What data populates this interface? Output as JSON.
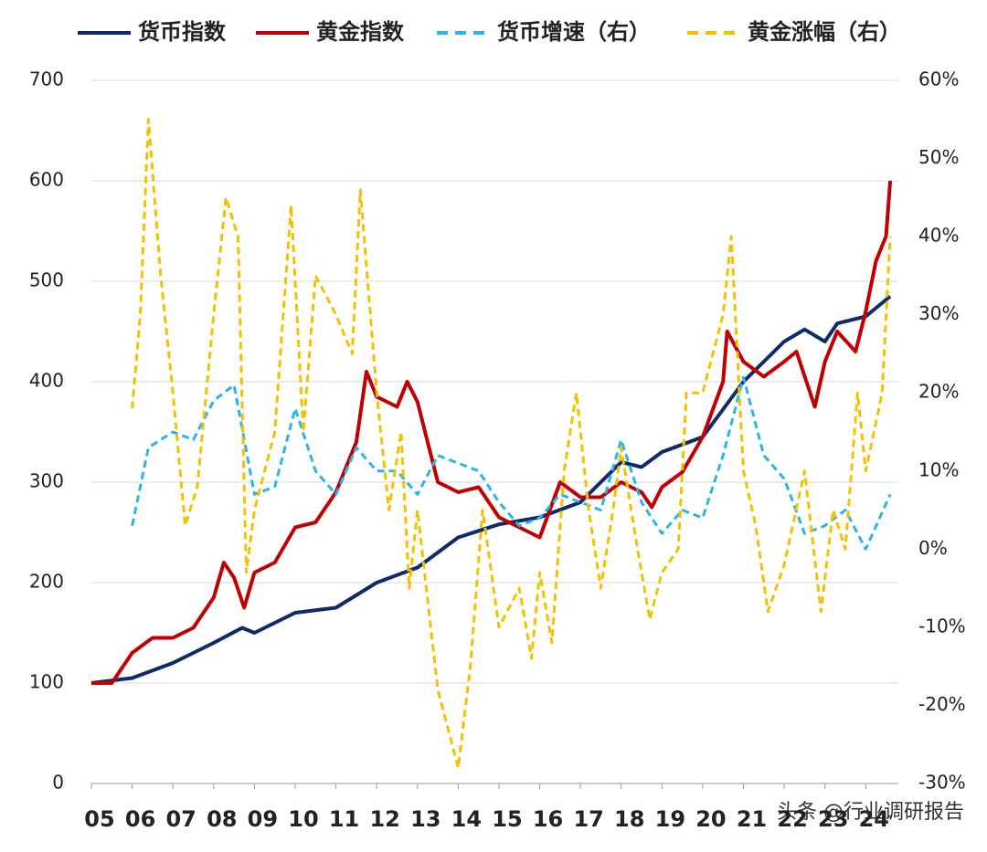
{
  "chart_data": {
    "type": "line",
    "xlim": [
      2005,
      2024.8
    ],
    "xticks": [
      {
        "value": 2005,
        "label": "05"
      },
      {
        "value": 2006,
        "label": "06"
      },
      {
        "value": 2007,
        "label": "07"
      },
      {
        "value": 2008,
        "label": "08"
      },
      {
        "value": 2009,
        "label": "09"
      },
      {
        "value": 2010,
        "label": "10"
      },
      {
        "value": 2011,
        "label": "11"
      },
      {
        "value": 2012,
        "label": "12"
      },
      {
        "value": 2013,
        "label": "13"
      },
      {
        "value": 2014,
        "label": "14"
      },
      {
        "value": 2015,
        "label": "15"
      },
      {
        "value": 2016,
        "label": "16"
      },
      {
        "value": 2017,
        "label": "17"
      },
      {
        "value": 2018,
        "label": "18"
      },
      {
        "value": 2019,
        "label": "19"
      },
      {
        "value": 2020,
        "label": "20"
      },
      {
        "value": 2021,
        "label": "21"
      },
      {
        "value": 2022,
        "label": "22"
      },
      {
        "value": 2023,
        "label": "23"
      },
      {
        "value": 2024,
        "label": "24"
      }
    ],
    "ylim": [
      0,
      700
    ],
    "yticks": [
      0,
      100,
      200,
      300,
      400,
      500,
      600,
      700
    ],
    "y2lim": [
      -30,
      60
    ],
    "y2ticks": [
      {
        "value": -30,
        "label": "-30%"
      },
      {
        "value": -20,
        "label": "-20%"
      },
      {
        "value": -10,
        "label": "-10%"
      },
      {
        "value": 0,
        "label": "0%"
      },
      {
        "value": 10,
        "label": "10%"
      },
      {
        "value": 20,
        "label": "20%"
      },
      {
        "value": 30,
        "label": "30%"
      },
      {
        "value": 40,
        "label": "40%"
      },
      {
        "value": 50,
        "label": "50%"
      },
      {
        "value": 60,
        "label": "60%"
      }
    ],
    "grid": true,
    "legend": "top",
    "watermark": "头条 @行业调研报告",
    "series": [
      {
        "name": "货币指数",
        "color": "#0d2a6b",
        "dash": false,
        "x": [
          2005,
          2006,
          2007,
          2008,
          2008.7,
          2009,
          2010,
          2011,
          2012,
          2013,
          2014,
          2015,
          2016,
          2017,
          2018,
          2018.5,
          2019,
          2020,
          2021,
          2022,
          2022.5,
          2023,
          2023.3,
          2024,
          2024.6
        ],
        "values": [
          100,
          105,
          120,
          140,
          155,
          150,
          170,
          175,
          200,
          215,
          245,
          258,
          265,
          280,
          320,
          315,
          330,
          345,
          400,
          440,
          452,
          440,
          458,
          465,
          485
        ]
      },
      {
        "name": "黄金指数",
        "color": "#c00000",
        "dash": false,
        "x": [
          2005,
          2005.5,
          2006,
          2006.5,
          2007,
          2007.5,
          2008,
          2008.25,
          2008.5,
          2008.75,
          2009,
          2009.5,
          2010,
          2010.5,
          2011,
          2011.5,
          2011.75,
          2012,
          2012.5,
          2012.75,
          2013,
          2013.25,
          2013.5,
          2014,
          2014.5,
          2015,
          2015.5,
          2016,
          2016.5,
          2017,
          2017.5,
          2018,
          2018.5,
          2018.75,
          2019,
          2019.5,
          2020,
          2020.5,
          2020.6,
          2021,
          2021.5,
          2022,
          2022.3,
          2022.75,
          2023,
          2023.3,
          2023.75,
          2024,
          2024.25,
          2024.5,
          2024.6
        ],
        "values": [
          100,
          100,
          130,
          145,
          145,
          155,
          185,
          220,
          205,
          175,
          210,
          220,
          255,
          260,
          290,
          340,
          410,
          385,
          375,
          400,
          380,
          340,
          300,
          290,
          295,
          265,
          255,
          245,
          300,
          285,
          285,
          300,
          290,
          275,
          295,
          310,
          345,
          400,
          450,
          420,
          405,
          420,
          430,
          375,
          420,
          450,
          430,
          470,
          520,
          545,
          600
        ]
      },
      {
        "name": "货币增速（右）",
        "color": "#2bb5e6",
        "dash": true,
        "axis": "y2",
        "x": [
          2006,
          2006.4,
          2007,
          2007.5,
          2008,
          2008.5,
          2009,
          2009.5,
          2010,
          2010.5,
          2011,
          2011.5,
          2012,
          2012.5,
          2013,
          2013.5,
          2014,
          2014.5,
          2015,
          2015.5,
          2016,
          2016.5,
          2017,
          2017.5,
          2018,
          2018.5,
          2019,
          2019.5,
          2020,
          2020.5,
          2021,
          2021.5,
          2022,
          2022.5,
          2023,
          2023.5,
          2024,
          2024.6
        ],
        "values": [
          3,
          13,
          15,
          14,
          19,
          21,
          7,
          8,
          18,
          10,
          7,
          13,
          10,
          10,
          7,
          12,
          11,
          10,
          6,
          3,
          4,
          7,
          6,
          5,
          14,
          6,
          2,
          5,
          4,
          12,
          22,
          12,
          9,
          2,
          3,
          5,
          0,
          7
        ]
      },
      {
        "name": "黄金涨幅（右）",
        "color": "#f5c000",
        "dash": true,
        "axis": "y2",
        "x": [
          2006,
          2006.2,
          2006.4,
          2006.7,
          2007,
          2007.3,
          2007.6,
          2008,
          2008.3,
          2008.6,
          2008.8,
          2009,
          2009.5,
          2009.9,
          2010.2,
          2010.5,
          2011,
          2011.4,
          2011.6,
          2012,
          2012.3,
          2012.6,
          2012.8,
          2013,
          2013.5,
          2014,
          2014.3,
          2014.6,
          2015,
          2015.5,
          2015.8,
          2016,
          2016.3,
          2016.6,
          2016.9,
          2017.2,
          2017.5,
          2017.8,
          2018,
          2018.4,
          2018.7,
          2019,
          2019.4,
          2019.6,
          2020,
          2020.5,
          2020.7,
          2021,
          2021.3,
          2021.6,
          2022,
          2022.5,
          2022.9,
          2023.2,
          2023.5,
          2023.8,
          2024,
          2024.4,
          2024.6
        ],
        "values": [
          18,
          30,
          55,
          35,
          20,
          3,
          8,
          30,
          45,
          40,
          -3,
          5,
          15,
          44,
          15,
          35,
          30,
          25,
          46,
          20,
          5,
          15,
          -5,
          5,
          -18,
          -28,
          -15,
          5,
          -10,
          -5,
          -14,
          -3,
          -12,
          10,
          20,
          5,
          -5,
          5,
          13,
          0,
          -9,
          -3,
          0,
          20,
          20,
          30,
          40,
          10,
          3,
          -8,
          -2,
          10,
          -8,
          5,
          0,
          20,
          10,
          20,
          40
        ]
      }
    ]
  }
}
